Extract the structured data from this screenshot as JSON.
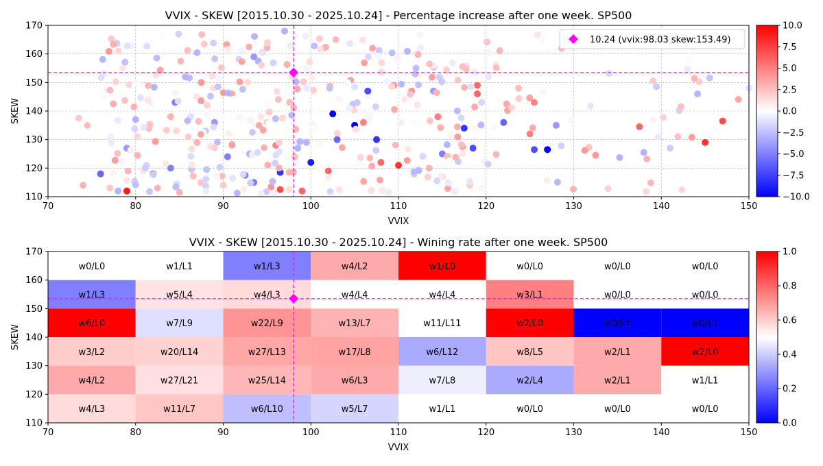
{
  "chart_data": [
    {
      "type": "scatter",
      "title": "VVIX - SKEW [2015.10.30 - 2025.10.24]  - Percentage increase after one week. SP500",
      "xlabel": "VVIX",
      "ylabel": "SKEW",
      "xlim": [
        70,
        150
      ],
      "ylim": [
        110,
        170
      ],
      "xticks": [
        "70",
        "80",
        "90",
        "100",
        "110",
        "120",
        "130",
        "140",
        "150"
      ],
      "yticks": [
        "110",
        "120",
        "130",
        "140",
        "150",
        "160",
        "170"
      ],
      "grid": true,
      "colorbar": {
        "min": -10,
        "max": 10,
        "ticks": [
          "10.0",
          "7.5",
          "5.0",
          "2.5",
          "0.0",
          "−2.5",
          "−5.0",
          "−7.5",
          "−10.0"
        ],
        "colormap": "bwr"
      },
      "current_point": {
        "vvix": 98.03,
        "skew": 153.49,
        "color": "#ff00ff"
      },
      "legend": {
        "text": "10.24 (vvix:98.03 skew:153.49)",
        "position": "top-right"
      },
      "points_sample": [
        [
          73.5,
          137.5,
          2
        ],
        [
          74,
          114,
          3
        ],
        [
          74.5,
          135,
          2.5
        ],
        [
          76,
          118,
          -6
        ],
        [
          78.5,
          155,
          1
        ],
        [
          79,
          112,
          9
        ],
        [
          78,
          112,
          -3
        ],
        [
          79,
          127,
          -4
        ],
        [
          80,
          137,
          -3
        ],
        [
          81.5,
          134,
          3
        ],
        [
          82,
          118,
          -6
        ],
        [
          82.5,
          113,
          3
        ],
        [
          84,
          138,
          3
        ],
        [
          84,
          120,
          -5
        ],
        [
          84.5,
          143,
          -5
        ],
        [
          85,
          111.5,
          3
        ],
        [
          86,
          131,
          2
        ],
        [
          87,
          145,
          1
        ],
        [
          87.5,
          150,
          4
        ],
        [
          88,
          133,
          -2
        ],
        [
          89,
          136,
          -4
        ],
        [
          90,
          114,
          2
        ],
        [
          90.5,
          124,
          -5
        ],
        [
          91,
          128,
          3
        ],
        [
          92.5,
          117.5,
          -5
        ],
        [
          93,
          125,
          -3
        ],
        [
          93.5,
          115,
          -5
        ],
        [
          93.5,
          159,
          -4
        ],
        [
          94,
          157.5,
          -3
        ],
        [
          95,
          136,
          2
        ],
        [
          96,
          128,
          5
        ],
        [
          96.5,
          118.5,
          -8
        ],
        [
          96.5,
          112.5,
          7
        ],
        [
          97,
          168,
          -3
        ],
        [
          98.5,
          127,
          -3
        ],
        [
          99,
          112,
          6
        ],
        [
          99.5,
          129,
          -3
        ],
        [
          100,
          122,
          -9
        ],
        [
          102.5,
          139,
          -10
        ],
        [
          102,
          119,
          6
        ],
        [
          103,
          130,
          -6
        ],
        [
          105,
          135,
          -10
        ],
        [
          106,
          136,
          5
        ],
        [
          106.5,
          147,
          -7
        ],
        [
          107.5,
          130,
          -8
        ],
        [
          108,
          122,
          6
        ],
        [
          109.5,
          149,
          4
        ],
        [
          110,
          121,
          8
        ],
        [
          111.5,
          147,
          4
        ],
        [
          113.5,
          120,
          3
        ],
        [
          114,
          147,
          -4
        ],
        [
          114.5,
          138,
          5
        ],
        [
          115,
          125,
          -5
        ],
        [
          117.5,
          134,
          -8
        ],
        [
          118.5,
          127,
          -7
        ],
        [
          119,
          146,
          6
        ],
        [
          119,
          149,
          6
        ],
        [
          122,
          136,
          -6
        ],
        [
          125,
          132,
          5
        ],
        [
          125.5,
          126.5,
          -7
        ],
        [
          125.5,
          143,
          5
        ],
        [
          127,
          126.5,
          -10
        ],
        [
          128,
          135,
          -4
        ],
        [
          132.5,
          124.5,
          4
        ],
        [
          137.5,
          134.5,
          6
        ],
        [
          138,
          125.5,
          -3
        ],
        [
          141,
          127,
          -2
        ],
        [
          145,
          129,
          8
        ],
        [
          147,
          136.5,
          7
        ],
        [
          150,
          148,
          -1
        ]
      ]
    },
    {
      "type": "heatmap",
      "title": "VVIX - SKEW [2015.10.30 - 2025.10.24]  - Wining rate after one week. SP500",
      "xlabel": "VVIX",
      "ylabel": "SKEW",
      "xlim": [
        70,
        150
      ],
      "ylim": [
        110,
        170
      ],
      "xticks": [
        "70",
        "80",
        "90",
        "100",
        "110",
        "120",
        "130",
        "140",
        "150"
      ],
      "yticks": [
        "110",
        "120",
        "130",
        "140",
        "150",
        "160",
        "170"
      ],
      "x_bins": [
        70,
        80,
        90,
        100,
        110,
        120,
        130,
        140,
        150
      ],
      "y_bins": [
        170,
        160,
        150,
        140,
        130,
        120,
        110
      ],
      "colorbar": {
        "min": 0,
        "max": 1,
        "ticks": [
          "1.0",
          "0.8",
          "0.6",
          "0.4",
          "0.2",
          "0.0"
        ],
        "colormap": "bwr"
      },
      "current_point": {
        "vvix": 98.03,
        "skew": 153.49,
        "color": "#ff00ff"
      },
      "rows": [
        {
          "skew_range": "160-170",
          "cells": [
            {
              "label": "w0/L0",
              "rate": null
            },
            {
              "label": "w1/L1",
              "rate": 0.5
            },
            {
              "label": "w1/L3",
              "rate": 0.25
            },
            {
              "label": "w4/L2",
              "rate": 0.667
            },
            {
              "label": "w1/L0",
              "rate": 1.0
            },
            {
              "label": "w0/L0",
              "rate": null
            },
            {
              "label": "w0/L0",
              "rate": null
            },
            {
              "label": "w0/L0",
              "rate": null
            }
          ]
        },
        {
          "skew_range": "150-160",
          "cells": [
            {
              "label": "w1/L3",
              "rate": 0.25
            },
            {
              "label": "w5/L4",
              "rate": 0.556
            },
            {
              "label": "w4/L3",
              "rate": 0.571
            },
            {
              "label": "w4/L4",
              "rate": 0.5
            },
            {
              "label": "w4/L4",
              "rate": 0.5
            },
            {
              "label": "w3/L1",
              "rate": 0.75
            },
            {
              "label": "w0/L0",
              "rate": null
            },
            {
              "label": "w0/L0",
              "rate": null
            }
          ]
        },
        {
          "skew_range": "140-150",
          "cells": [
            {
              "label": "w6/L0",
              "rate": 1.0
            },
            {
              "label": "w7/L9",
              "rate": 0.4375
            },
            {
              "label": "w22/L9",
              "rate": 0.71
            },
            {
              "label": "w13/L7",
              "rate": 0.65
            },
            {
              "label": "w11/L11",
              "rate": 0.5
            },
            {
              "label": "w2/L0",
              "rate": 1.0
            },
            {
              "label": "w0/L1",
              "rate": 0.0
            },
            {
              "label": "w0/L1",
              "rate": 0.0
            }
          ]
        },
        {
          "skew_range": "130-140",
          "cells": [
            {
              "label": "w3/L2",
              "rate": 0.6
            },
            {
              "label": "w20/L14",
              "rate": 0.588
            },
            {
              "label": "w27/L13",
              "rate": 0.675
            },
            {
              "label": "w17/L8",
              "rate": 0.68
            },
            {
              "label": "w6/L12",
              "rate": 0.333
            },
            {
              "label": "w8/L5",
              "rate": 0.615
            },
            {
              "label": "w2/L1",
              "rate": 0.667
            },
            {
              "label": "w2/L0",
              "rate": 1.0
            }
          ]
        },
        {
          "skew_range": "120-130",
          "cells": [
            {
              "label": "w4/L2",
              "rate": 0.667
            },
            {
              "label": "w27/L21",
              "rate": 0.5625
            },
            {
              "label": "w25/L14",
              "rate": 0.641
            },
            {
              "label": "w6/L3",
              "rate": 0.667
            },
            {
              "label": "w7/L8",
              "rate": 0.467
            },
            {
              "label": "w2/L4",
              "rate": 0.333
            },
            {
              "label": "w2/L1",
              "rate": 0.667
            },
            {
              "label": "w1/L1",
              "rate": 0.5
            }
          ]
        },
        {
          "skew_range": "110-120",
          "cells": [
            {
              "label": "w4/L3",
              "rate": 0.571
            },
            {
              "label": "w11/L7",
              "rate": 0.611
            },
            {
              "label": "w6/L10",
              "rate": 0.375
            },
            {
              "label": "w5/L7",
              "rate": 0.417
            },
            {
              "label": "w1/L1",
              "rate": 0.5
            },
            {
              "label": "w0/L0",
              "rate": null
            },
            {
              "label": "w0/L0",
              "rate": null
            },
            {
              "label": "w0/L0",
              "rate": null
            }
          ]
        }
      ]
    }
  ]
}
